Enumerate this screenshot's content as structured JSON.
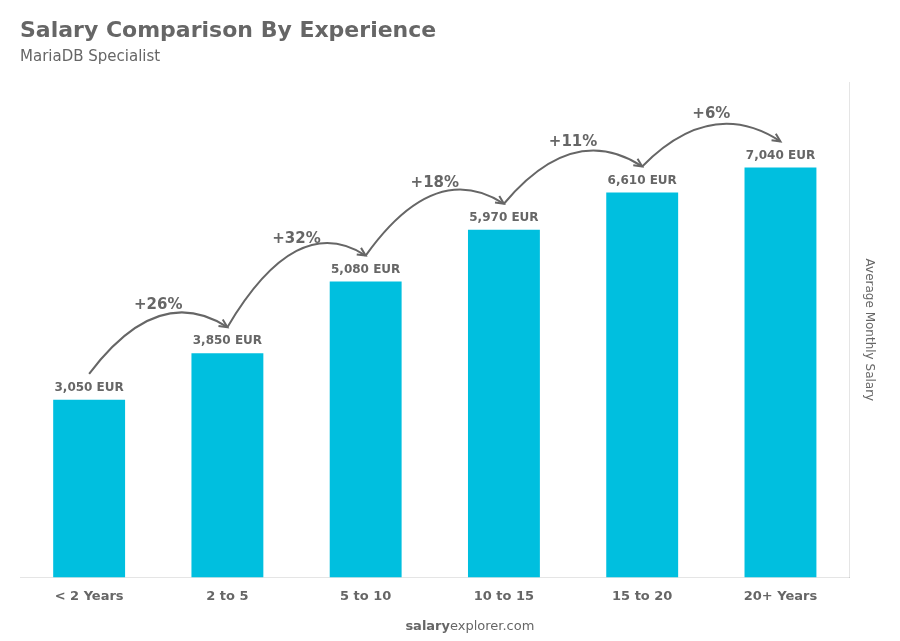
{
  "chart_data": {
    "type": "bar",
    "title": "Salary Comparison By Experience",
    "subtitle": "MariaDB Specialist",
    "ylabel": "Average Monthly Salary",
    "categories": [
      "< 2 Years",
      "2 to 5",
      "5 to 10",
      "10 to 15",
      "15 to 20",
      "20+ Years"
    ],
    "values": [
      3050,
      3850,
      5080,
      5970,
      6610,
      7040
    ],
    "value_labels": [
      "3,050 EUR",
      "3,850 EUR",
      "5,080 EUR",
      "5,970 EUR",
      "6,610 EUR",
      "7,040 EUR"
    ],
    "data_labels": true,
    "color": "#00bfdf",
    "ylim": [
      0,
      8500
    ],
    "tick_labels": "x",
    "grid": false,
    "annotations": [
      "+26%",
      "+32%",
      "+18%",
      "+11%",
      "+6%"
    ],
    "footer": [
      "salary",
      "explorer.com"
    ]
  }
}
